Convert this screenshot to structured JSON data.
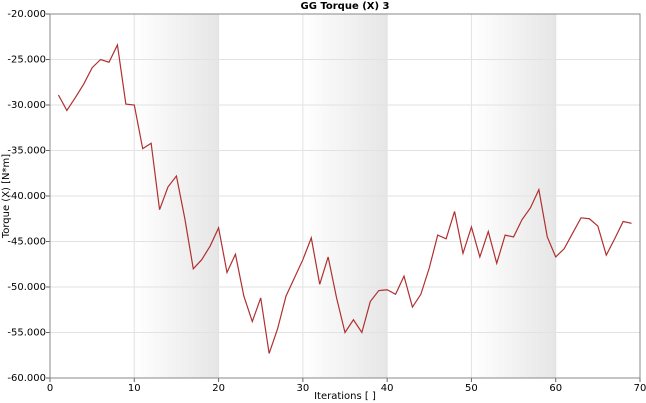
{
  "chart_data": {
    "type": "line",
    "title": "GG Torque (X) 3",
    "xlabel": "Iterations [ ]",
    "ylabel": "Torque (X) [N*m]",
    "x": [
      1,
      2,
      3,
      4,
      5,
      6,
      7,
      8,
      9,
      10,
      11,
      12,
      13,
      14,
      15,
      16,
      17,
      18,
      19,
      20,
      21,
      22,
      23,
      24,
      25,
      26,
      27,
      28,
      29,
      30,
      31,
      32,
      33,
      34,
      35,
      36,
      37,
      38,
      39,
      40,
      41,
      42,
      43,
      44,
      45,
      46,
      47,
      48,
      49,
      50,
      51,
      52,
      53,
      54,
      55,
      56,
      57,
      58,
      59,
      60,
      61,
      62,
      63,
      64,
      65,
      66,
      67,
      68,
      69
    ],
    "series": [
      {
        "name": "GG Torque (X) 3",
        "color": "#b03030",
        "values": [
          -28.9,
          -30.6,
          -29.2,
          -27.7,
          -25.9,
          -25.0,
          -25.3,
          -23.4,
          -29.9,
          -30.0,
          -34.8,
          -34.2,
          -41.5,
          -39.0,
          -37.8,
          -42.5,
          -48.0,
          -47.0,
          -45.5,
          -43.5,
          -48.4,
          -46.4,
          -51.0,
          -53.8,
          -51.2,
          -57.3,
          -54.6,
          -51.0,
          -49.0,
          -47.0,
          -44.6,
          -49.7,
          -46.7,
          -51.2,
          -55.0,
          -53.6,
          -55.0,
          -51.6,
          -50.4,
          -50.3,
          -50.8,
          -48.8,
          -52.2,
          -50.8,
          -47.9,
          -44.3,
          -44.7,
          -41.7,
          -46.3,
          -43.4,
          -46.7,
          -43.9,
          -47.4,
          -44.3,
          -44.5,
          -42.6,
          -41.3,
          -39.3,
          -44.5,
          -46.7,
          -45.8,
          -44.1,
          -42.4,
          -42.5,
          -43.3,
          -46.5,
          -44.7,
          -42.8,
          -43.0
        ]
      }
    ],
    "xlim": [
      0,
      70
    ],
    "xticks": [
      0,
      10,
      20,
      30,
      40,
      50,
      60,
      70
    ],
    "ylim": [
      -60,
      -20
    ],
    "yticks": [
      {
        "value": -60,
        "label": "-60.000"
      },
      {
        "value": -55,
        "label": "-55.000"
      },
      {
        "value": -50,
        "label": "-50.000"
      },
      {
        "value": -45,
        "label": "-45.000"
      },
      {
        "value": -40,
        "label": "-40.000"
      },
      {
        "value": -35,
        "label": "-35.000"
      },
      {
        "value": -30,
        "label": "-30.000"
      },
      {
        "value": -25,
        "label": "-25.000"
      },
      {
        "value": -20,
        "label": "-20.000"
      }
    ],
    "grid": true
  }
}
